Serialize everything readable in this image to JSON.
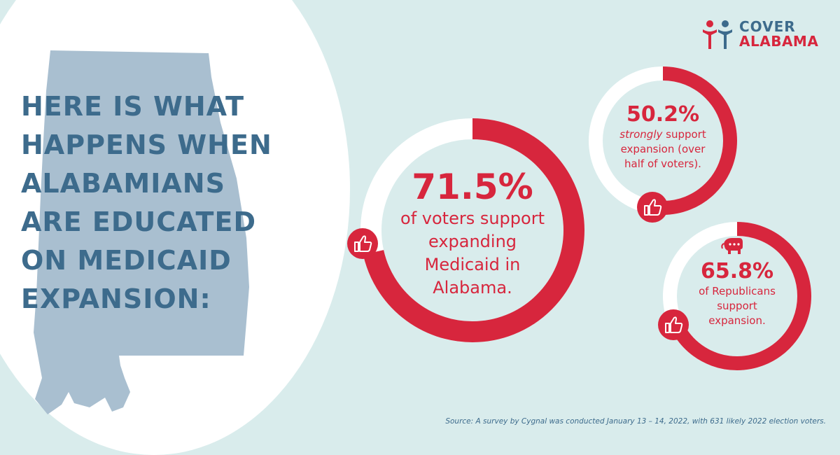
{
  "headline": [
    "HERE IS WHAT",
    "HAPPENS WHEN",
    "ALABAMIANS",
    "ARE EDUCATED",
    "ON MEDICAID",
    "EXPANSION:"
  ],
  "logo": {
    "line1": "COVER",
    "line2": "ALABAMA"
  },
  "stats": {
    "main": {
      "percent": "71.5%",
      "value": 71.5,
      "lines": [
        "of voters support",
        "expanding",
        "Medicaid in",
        "Alabama."
      ],
      "icon": "thumbs-up-icon"
    },
    "strong": {
      "percent": "50.2%",
      "value": 50.2,
      "italic": "strongly",
      "line1_rest": " support",
      "lines": [
        "expansion (over",
        "half of voters)."
      ],
      "icon": "thumbs-up-icon"
    },
    "republicans": {
      "percent": "65.8%",
      "value": 65.8,
      "lines": [
        "of Republicans",
        "support",
        "expansion."
      ],
      "icon": "thumbs-up-icon",
      "badge_icon": "republican-elephant-icon"
    }
  },
  "source": "Source: A survey by Cygnal was conducted January 13 – 14, 2022, with 631 likely 2022 election voters.",
  "colors": {
    "background": "#d9ecec",
    "accent_red": "#d7263d",
    "heading_blue": "#3d6b8c",
    "map_blue": "#a9bfd0"
  }
}
